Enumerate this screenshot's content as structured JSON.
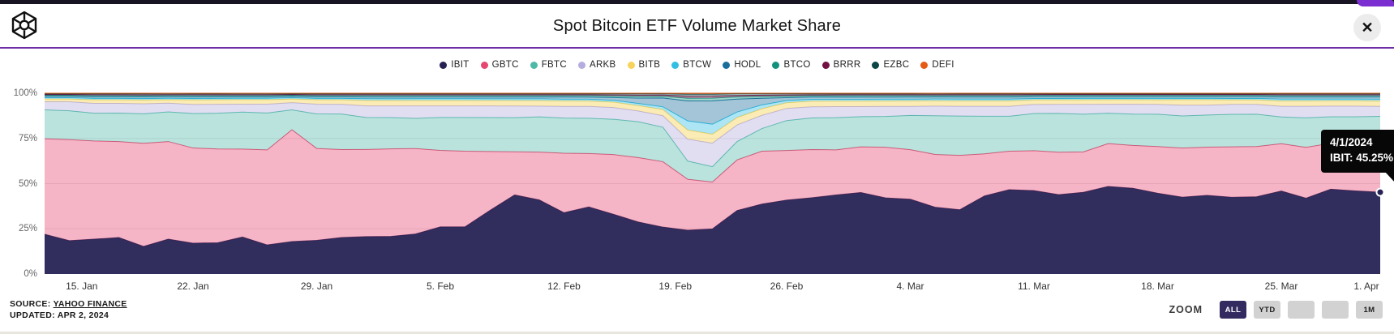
{
  "header": {
    "close_label": "✕"
  },
  "chart_data": {
    "type": "area",
    "stacking": "percent",
    "title": "Spot Bitcoin ETF Volume Market Share",
    "ylim": [
      0,
      100
    ],
    "grid": true,
    "legend_position": "top",
    "y_ticks": [
      {
        "label": "0%",
        "value": 0
      },
      {
        "label": "25%",
        "value": 25
      },
      {
        "label": "50%",
        "value": 50
      },
      {
        "label": "75%",
        "value": 75
      },
      {
        "label": "100%",
        "value": 100
      }
    ],
    "x_ticks": [
      {
        "label": "15. Jan",
        "index": 1.5
      },
      {
        "label": "22. Jan",
        "index": 6
      },
      {
        "label": "29. Jan",
        "index": 11
      },
      {
        "label": "5. Feb",
        "index": 16
      },
      {
        "label": "12. Feb",
        "index": 21
      },
      {
        "label": "19. Feb",
        "index": 25.5
      },
      {
        "label": "26. Feb",
        "index": 30
      },
      {
        "label": "4. Mar",
        "index": 35
      },
      {
        "label": "11. Mar",
        "index": 40
      },
      {
        "label": "18. Mar",
        "index": 45
      },
      {
        "label": "25. Mar",
        "index": 50
      },
      {
        "label": "1. Apr",
        "index": 54
      }
    ],
    "x_dates": [
      "1/11/2024",
      "1/12/2024",
      "1/16/2024",
      "1/17/2024",
      "1/18/2024",
      "1/19/2024",
      "1/22/2024",
      "1/23/2024",
      "1/24/2024",
      "1/25/2024",
      "1/26/2024",
      "1/29/2024",
      "1/30/2024",
      "1/31/2024",
      "2/1/2024",
      "2/2/2024",
      "2/5/2024",
      "2/6/2024",
      "2/7/2024",
      "2/8/2024",
      "2/9/2024",
      "2/12/2024",
      "2/13/2024",
      "2/14/2024",
      "2/15/2024",
      "2/16/2024",
      "2/20/2024",
      "2/21/2024",
      "2/22/2024",
      "2/23/2024",
      "2/26/2024",
      "2/27/2024",
      "2/28/2024",
      "2/29/2024",
      "3/1/2024",
      "3/4/2024",
      "3/5/2024",
      "3/6/2024",
      "3/7/2024",
      "3/8/2024",
      "3/11/2024",
      "3/12/2024",
      "3/13/2024",
      "3/14/2024",
      "3/15/2024",
      "3/18/2024",
      "3/19/2024",
      "3/20/2024",
      "3/21/2024",
      "3/22/2024",
      "3/25/2024",
      "3/26/2024",
      "3/27/2024",
      "3/28/2024",
      "4/1/2024"
    ],
    "series": [
      {
        "name": "IBIT",
        "color": "#262253",
        "fill_opacity": 0.95,
        "values": [
          22,
          18.5,
          19.5,
          20.5,
          15,
          20,
          17,
          17.5,
          21,
          16.5,
          18,
          19,
          20.5,
          21,
          21,
          22.5,
          26.5,
          26.5,
          35.5,
          44,
          41,
          34,
          37,
          33,
          29,
          26.5,
          24,
          25,
          34.5,
          37,
          39.5,
          41,
          43,
          44.5,
          42,
          41.5,
          38,
          36,
          43.5,
          47,
          46,
          44,
          45.5,
          49,
          48,
          45,
          43,
          44,
          42.5,
          43,
          46.5,
          42.5,
          48,
          47,
          45.25
        ]
      },
      {
        "name": "GBTC",
        "color": "#E54770",
        "fill_opacity": 0.4,
        "values": [
          53,
          56,
          55,
          54,
          56,
          56,
          52.5,
          52.5,
          50,
          54,
          62,
          52,
          49.5,
          49,
          49,
          48,
          43,
          42.5,
          33,
          24,
          26.5,
          33,
          29.5,
          33,
          36,
          37,
          28,
          26,
          27.5,
          28,
          26.5,
          26,
          24.5,
          25,
          28,
          27.5,
          30,
          30.5,
          23.5,
          21.5,
          22,
          23.5,
          22.5,
          24,
          24,
          26,
          27.5,
          27,
          28,
          28,
          26.5,
          28.5,
          26,
          26.5,
          26.5
        ]
      },
      {
        "name": "FBTC",
        "color": "#4FB9A8",
        "fill_opacity": 0.4,
        "values": [
          16,
          16,
          15.5,
          16,
          16,
          17,
          19,
          20,
          21,
          21,
          11,
          19.5,
          20,
          18,
          17.5,
          17,
          18.5,
          19,
          19,
          19,
          19.5,
          19.5,
          19.5,
          19.5,
          20,
          19.5,
          10,
          8.5,
          10,
          12,
          16,
          17,
          17.5,
          16.5,
          17,
          19,
          22,
          22,
          21,
          19.5,
          20.5,
          21.5,
          21,
          17,
          17.5,
          18,
          18,
          18,
          18,
          18,
          15,
          16.5,
          15,
          15.5,
          15.5
        ]
      },
      {
        "name": "ARKB",
        "color": "#B5ACDF",
        "fill_opacity": 0.4,
        "values": [
          4.5,
          5,
          5.5,
          5.5,
          5.5,
          5,
          5,
          5,
          4.5,
          5,
          4,
          5.5,
          5.5,
          6.5,
          6.5,
          7,
          6.5,
          6.5,
          6.5,
          6.5,
          6,
          6.5,
          6.5,
          6.5,
          6,
          6.5,
          12,
          13,
          9,
          7,
          6.5,
          6,
          6,
          5.5,
          5.5,
          5,
          5.5,
          5.5,
          5.5,
          5.5,
          5,
          5,
          5.5,
          5,
          5.5,
          5.5,
          6,
          5.5,
          5.5,
          5.5,
          6,
          6.5,
          6,
          6,
          5.5
        ]
      },
      {
        "name": "BITB",
        "color": "#F7D35B",
        "fill_opacity": 0.45,
        "values": [
          1.5,
          1.5,
          2,
          2,
          2,
          2,
          2.5,
          2.5,
          2.5,
          2.5,
          2,
          2.5,
          2.5,
          3,
          3,
          3,
          3,
          3,
          3,
          3,
          3,
          3,
          3,
          3,
          3,
          3.5,
          5,
          5,
          4,
          3.5,
          3,
          3,
          3,
          3,
          3,
          3,
          3,
          3,
          3,
          3,
          2.5,
          2.5,
          2.5,
          2.5,
          2.5,
          2.5,
          3,
          3,
          2.5,
          2.5,
          3,
          3,
          3,
          3,
          3
        ]
      },
      {
        "name": "BTCW",
        "color": "#33BFE3",
        "fill_opacity": 0.4,
        "values": [
          0.7,
          0.7,
          0.8,
          0.8,
          0.8,
          0.8,
          0.8,
          0.8,
          0.8,
          0.8,
          0.7,
          0.8,
          0.8,
          1,
          1,
          1,
          1,
          1,
          1,
          1,
          1,
          1,
          1,
          1,
          1.2,
          1.5,
          5,
          5.5,
          3,
          2,
          1.2,
          1,
          1,
          1,
          1,
          1,
          1,
          1,
          1,
          1,
          0.8,
          0.8,
          0.8,
          0.8,
          0.8,
          0.8,
          0.8,
          0.8,
          0.8,
          0.8,
          1,
          1,
          1,
          1,
          1
        ]
      },
      {
        "name": "HODL",
        "color": "#1B6E9C",
        "fill_opacity": 0.4,
        "values": [
          0.8,
          0.8,
          0.9,
          0.9,
          0.9,
          0.9,
          0.9,
          0.9,
          0.9,
          0.9,
          0.8,
          0.9,
          0.9,
          1,
          1,
          1,
          1,
          1,
          1,
          1,
          1,
          1.2,
          1.2,
          1.5,
          3,
          5,
          11,
          13,
          7,
          3.5,
          1.5,
          1.2,
          1.2,
          1.2,
          1.2,
          1.2,
          1.2,
          1.2,
          1.2,
          1.2,
          1,
          1,
          1,
          1,
          1,
          1,
          1,
          1,
          1,
          1,
          1.2,
          1.2,
          1.2,
          1.2,
          1.2
        ]
      },
      {
        "name": "BTCO",
        "color": "#12917E",
        "fill_opacity": 0.4,
        "values": [
          0.6,
          0.6,
          0.7,
          0.7,
          0.7,
          0.7,
          0.7,
          0.7,
          0.7,
          0.7,
          0.6,
          0.7,
          0.7,
          0.8,
          0.8,
          0.8,
          0.8,
          0.8,
          0.8,
          0.8,
          0.8,
          0.8,
          0.8,
          0.9,
          1,
          1,
          1.5,
          1.5,
          1.2,
          1,
          0.9,
          0.8,
          0.8,
          0.8,
          0.8,
          0.8,
          0.8,
          0.8,
          0.8,
          0.8,
          0.7,
          0.7,
          0.7,
          0.7,
          0.7,
          0.7,
          0.7,
          0.7,
          0.7,
          0.7,
          0.8,
          0.8,
          0.8,
          0.8,
          0.8
        ]
      },
      {
        "name": "BRRR",
        "color": "#731243",
        "fill_opacity": 0.4,
        "values": [
          0.4,
          0.4,
          0.5,
          0.5,
          0.5,
          0.5,
          0.5,
          0.5,
          0.5,
          0.5,
          0.4,
          0.5,
          0.5,
          0.5,
          0.5,
          0.5,
          0.5,
          0.5,
          0.5,
          0.5,
          0.5,
          0.5,
          0.5,
          0.6,
          0.7,
          0.7,
          1,
          1,
          0.8,
          0.7,
          0.6,
          0.5,
          0.5,
          0.5,
          0.5,
          0.5,
          0.5,
          0.5,
          0.5,
          0.5,
          0.5,
          0.5,
          0.5,
          0.5,
          0.5,
          0.5,
          0.5,
          0.5,
          0.5,
          0.5,
          0.5,
          0.5,
          0.5,
          0.5,
          0.5
        ]
      },
      {
        "name": "EZBC",
        "color": "#0C4646",
        "fill_opacity": 0.4,
        "values": [
          0.5,
          0.5,
          0.6,
          0.6,
          0.6,
          0.6,
          0.6,
          0.6,
          0.6,
          0.6,
          0.5,
          0.6,
          0.6,
          0.6,
          0.6,
          0.6,
          0.6,
          0.6,
          0.6,
          0.6,
          0.6,
          0.6,
          0.6,
          0.7,
          0.8,
          0.8,
          1.2,
          1.2,
          1,
          0.8,
          0.7,
          0.6,
          0.6,
          0.6,
          0.6,
          0.6,
          0.6,
          0.6,
          0.6,
          0.6,
          0.5,
          0.5,
          0.5,
          0.5,
          0.5,
          0.5,
          0.5,
          0.5,
          0.5,
          0.5,
          0.6,
          0.6,
          0.6,
          0.6,
          0.6
        ]
      },
      {
        "name": "DEFI",
        "color": "#E55B13",
        "fill_opacity": 0.4,
        "values": [
          0.2,
          0.2,
          0.2,
          0.2,
          0.2,
          0.2,
          0.2,
          0.2,
          0.2,
          0.2,
          0.2,
          0.2,
          0.2,
          0.2,
          0.2,
          0.2,
          0.2,
          0.2,
          0.2,
          0.2,
          0.2,
          0.2,
          0.2,
          0.2,
          0.2,
          0.2,
          0.5,
          0.5,
          0.2,
          0.2,
          0.2,
          0.2,
          0.2,
          0.2,
          0.2,
          0.2,
          0.2,
          0.2,
          0.2,
          0.2,
          0.2,
          0.2,
          0.2,
          0.2,
          0.2,
          0.2,
          0.2,
          0.2,
          0.2,
          0.2,
          0.2,
          0.2,
          0.2,
          0.2,
          0.2
        ]
      }
    ]
  },
  "tooltip": {
    "date": "4/1/2024",
    "value": "IBIT: 45.25%"
  },
  "footer": {
    "source_label": "SOURCE:",
    "source_link": "YAHOO FINANCE",
    "updated": "UPDATED: APR 2, 2024"
  },
  "zoom": {
    "label": "ZOOM",
    "buttons": [
      "ALL",
      "YTD",
      "",
      "",
      "1M"
    ],
    "active": "ALL"
  },
  "colors": {
    "accent_purple": "#6F2DA8",
    "tooltip_bg": "#070707",
    "zoom_active_bg": "#332A60",
    "grid": "#E6E6E6"
  }
}
